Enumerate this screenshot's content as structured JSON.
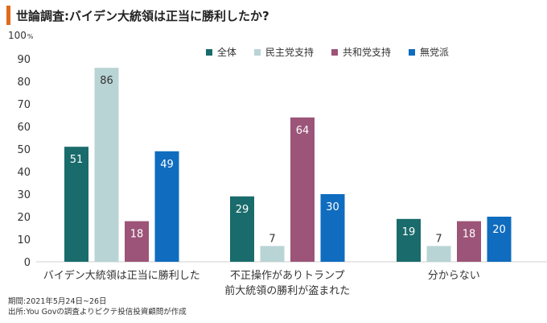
{
  "header": {
    "title": "世論調査:バイデン大統領は正当に勝利したか?",
    "unit_label": "100",
    "unit_symbol": "%"
  },
  "legend": [
    {
      "label": "全体",
      "color": "#1a6b6b"
    },
    {
      "label": "民主党支持",
      "color": "#b9d4d4"
    },
    {
      "label": "共和党支持",
      "color": "#9c5478"
    },
    {
      "label": "無党派",
      "color": "#0f6cbf"
    }
  ],
  "chart_data": {
    "type": "bar",
    "title": "世論調査:バイデン大統領は正当に勝利したか?",
    "ylabel": "%",
    "ylim": [
      0,
      100
    ],
    "yticks": [
      0,
      10,
      20,
      30,
      40,
      50,
      60,
      70,
      80,
      90,
      100
    ],
    "grid": false,
    "legend_position": "top-right",
    "categories": [
      [
        "バイデン大統領は正当に勝利した"
      ],
      [
        "不正操作がありトランプ",
        "前大統領の勝利が盗まれた"
      ],
      [
        "分からない"
      ]
    ],
    "series": [
      {
        "name": "全体",
        "color": "#1a6b6b",
        "values": [
          51,
          29,
          19
        ]
      },
      {
        "name": "民主党支持",
        "color": "#b9d4d4",
        "values": [
          86,
          7,
          7
        ]
      },
      {
        "name": "共和党支持",
        "color": "#9c5478",
        "values": [
          18,
          64,
          18
        ]
      },
      {
        "name": "無党派",
        "color": "#0f6cbf",
        "values": [
          49,
          30,
          20
        ]
      }
    ]
  },
  "notes": {
    "period": "期間:2021年5月24日~26日",
    "source": "出所:You Govの調査よりピクテ投信投資顧問が作成"
  }
}
